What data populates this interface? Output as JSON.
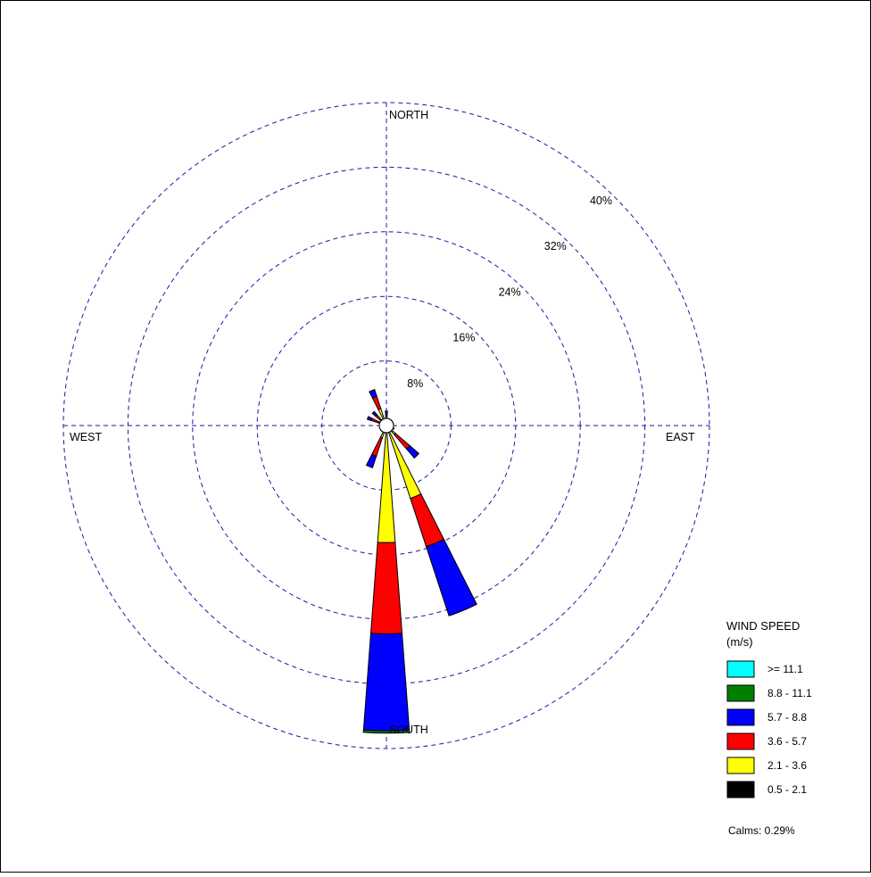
{
  "chart_data": {
    "type": "windrose",
    "direction_labels": {
      "north": "NORTH",
      "south": "SOUTH",
      "east": "EAST",
      "west": "WEST"
    },
    "ring_values": [
      8,
      16,
      24,
      32,
      40
    ],
    "ring_labels": [
      "8%",
      "16%",
      "24%",
      "32%",
      "40%"
    ],
    "rmax": 40,
    "legend": {
      "title_line1": "WIND SPEED",
      "title_line2": "(m/s)",
      "calms": "Calms: 0.29%",
      "bins": [
        {
          "label": ">= 11.1",
          "color": "#00ffff"
        },
        {
          "label": "8.8 - 11.1",
          "color": "#008000"
        },
        {
          "label": "5.7 -  8.8",
          "color": "#0000ff"
        },
        {
          "label": "3.6 -  5.7",
          "color": "#ff0000"
        },
        {
          "label": "2.1 -  3.6",
          "color": "#ffff00"
        },
        {
          "label": "0.5 -  2.1",
          "color": "#000000"
        }
      ]
    },
    "bins_order_inner_to_outer": [
      "0.5 -  2.1",
      "2.1 -  3.6",
      "3.6 -  5.7",
      "5.7 -  8.8",
      "8.8 - 11.1",
      ">= 11.1"
    ],
    "petals": [
      {
        "direction": 0,
        "cumulative": [
          0.4,
          0.7,
          1.2,
          1.8
        ]
      },
      {
        "direction": 22.5,
        "cumulative": [
          0.3,
          0.5,
          0.6,
          0.7
        ]
      },
      {
        "direction": 45,
        "cumulative": [
          0.3,
          0.5,
          0.6,
          0.7
        ]
      },
      {
        "direction": 67.5,
        "cumulative": [
          0.3,
          0.5,
          0.6,
          0.7
        ]
      },
      {
        "direction": 90,
        "cumulative": [
          0.3,
          0.5,
          0.6,
          0.7
        ]
      },
      {
        "direction": 112.5,
        "cumulative": [
          0.4,
          0.6,
          0.8,
          1.0
        ]
      },
      {
        "direction": 135,
        "cumulative": [
          0.5,
          1.5,
          3.8,
          5.3
        ]
      },
      {
        "direction": 157.5,
        "cumulative": [
          0.6,
          9.5,
          15.8,
          24.8
        ]
      },
      {
        "direction": 180,
        "cumulative": [
          0.6,
          14.5,
          25.8,
          37.8,
          38.1
        ]
      },
      {
        "direction": 202.5,
        "cumulative": [
          0.5,
          1.6,
          4.0,
          5.5
        ]
      },
      {
        "direction": 225,
        "cumulative": [
          0.3,
          0.5,
          0.7,
          0.9
        ]
      },
      {
        "direction": 247.5,
        "cumulative": [
          0.3,
          0.5,
          0.6,
          0.7
        ]
      },
      {
        "direction": 270,
        "cumulative": [
          0.3,
          0.4,
          0.5,
          0.6
        ]
      },
      {
        "direction": 292.5,
        "cumulative": [
          0.3,
          0.8,
          2.0,
          2.5
        ]
      },
      {
        "direction": 315,
        "cumulative": [
          0.4,
          1.0,
          1.8,
          2.3
        ]
      },
      {
        "direction": 337.5,
        "cumulative": [
          0.5,
          2.2,
          3.8,
          4.7
        ]
      }
    ]
  }
}
